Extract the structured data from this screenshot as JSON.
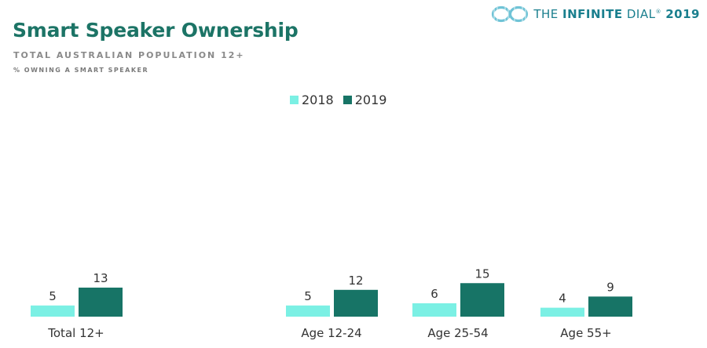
{
  "header": {
    "title": "Smart Speaker Ownership",
    "subtitle": "TOTAL AUSTRALIAN POPULATION 12+",
    "note": "% OWNING A SMART SPEAKER"
  },
  "brand": {
    "prefix": "THE ",
    "bold": "INFINITE",
    "suffix": " DIAL",
    "mark": "®",
    "year": "2019",
    "icon": "infinity-logo-icon"
  },
  "colors": {
    "series_2018": "#7bf0e4",
    "series_2019": "#177466",
    "title": "#1c7466"
  },
  "chart_data": {
    "type": "bar",
    "categories": [
      "Total 12+",
      "Age 12-24",
      "Age 25-54",
      "Age 55+"
    ],
    "series": [
      {
        "name": "2018",
        "values": [
          5,
          5,
          6,
          4
        ]
      },
      {
        "name": "2019",
        "values": [
          13,
          12,
          15,
          9
        ]
      }
    ],
    "title": "Smart Speaker Ownership",
    "subtitle": "TOTAL AUSTRALIAN POPULATION 12+",
    "ylabel": "",
    "xlabel": "",
    "legend": "top-center",
    "grid": false
  }
}
